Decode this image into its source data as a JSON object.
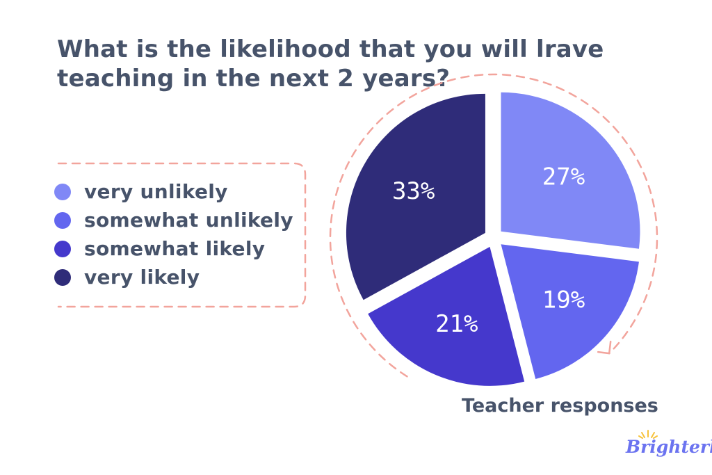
{
  "title": "What is the likelihood that you will lrave teaching in the next 2 years?",
  "caption": "Teacher responses",
  "logo_text": "Brighterly",
  "colors": {
    "text": "#47536a",
    "dashes": "#f2a49c",
    "logo": "#6b73f0"
  },
  "legend": [
    {
      "label": "very unlikely",
      "color": "#8088f6"
    },
    {
      "label": "somewhat unlikely",
      "color": "#6366ef"
    },
    {
      "label": "somewhat likely",
      "color": "#4538cc"
    },
    {
      "label": "very likely",
      "color": "#2f2c79"
    }
  ],
  "chart_data": {
    "type": "pie",
    "title": "What is the likelihood that you will lrave teaching in the next 2 years?",
    "slices": [
      {
        "label": "very unlikely",
        "value": 27,
        "display": "27%",
        "color": "#8088f6"
      },
      {
        "label": "somewhat unlikely",
        "value": 19,
        "display": "19%",
        "color": "#6366ef"
      },
      {
        "label": "somewhat likely",
        "value": 21,
        "display": "21%",
        "color": "#4538cc"
      },
      {
        "label": "very likely",
        "value": 33,
        "display": "33%",
        "color": "#2f2c79"
      }
    ],
    "start": "top",
    "direction": "clockwise",
    "exploded": true,
    "legend_position": "left"
  }
}
